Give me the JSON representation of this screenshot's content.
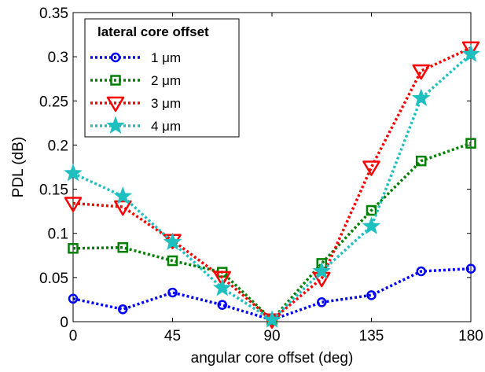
{
  "chart_data": {
    "type": "line",
    "title": "",
    "xlabel": "angular core offset (deg)",
    "ylabel": "PDL (dB)",
    "xlim": [
      0,
      180
    ],
    "ylim": [
      0,
      0.35
    ],
    "xticks": [
      0,
      45,
      90,
      135,
      180
    ],
    "xtick_labels": [
      "0",
      "45",
      "90",
      "135",
      "180"
    ],
    "yticks": [
      0,
      0.05,
      0.1,
      0.15,
      0.2,
      0.25,
      0.3,
      0.35
    ],
    "ytick_labels": [
      "0",
      "0.05",
      "0.1",
      "0.15",
      "0.2",
      "0.25",
      "0.3",
      "0.35"
    ],
    "grid": false,
    "legend": {
      "title": "lateral core offset",
      "position": "top-left"
    },
    "x": [
      0,
      22.5,
      45,
      67.5,
      90,
      112.5,
      135,
      157.5,
      180
    ],
    "series": [
      {
        "name": "1 μm",
        "color": "#0000ff",
        "marker": "circle",
        "values": [
          0.026,
          0.014,
          0.033,
          0.019,
          0.002,
          0.022,
          0.03,
          0.057,
          0.06
        ]
      },
      {
        "name": "2 μm",
        "color": "#008000",
        "marker": "square",
        "values": [
          0.083,
          0.084,
          0.069,
          0.056,
          0.002,
          0.066,
          0.126,
          0.182,
          0.202
        ]
      },
      {
        "name": "3 μm",
        "color": "#ff0000",
        "marker": "triangle-down",
        "values": [
          0.134,
          0.13,
          0.092,
          0.05,
          0.002,
          0.049,
          0.175,
          0.284,
          0.31
        ]
      },
      {
        "name": "4 μm",
        "color": "#1fbfbf",
        "marker": "star",
        "values": [
          0.168,
          0.142,
          0.09,
          0.038,
          0.002,
          0.057,
          0.108,
          0.253,
          0.303
        ]
      }
    ]
  }
}
